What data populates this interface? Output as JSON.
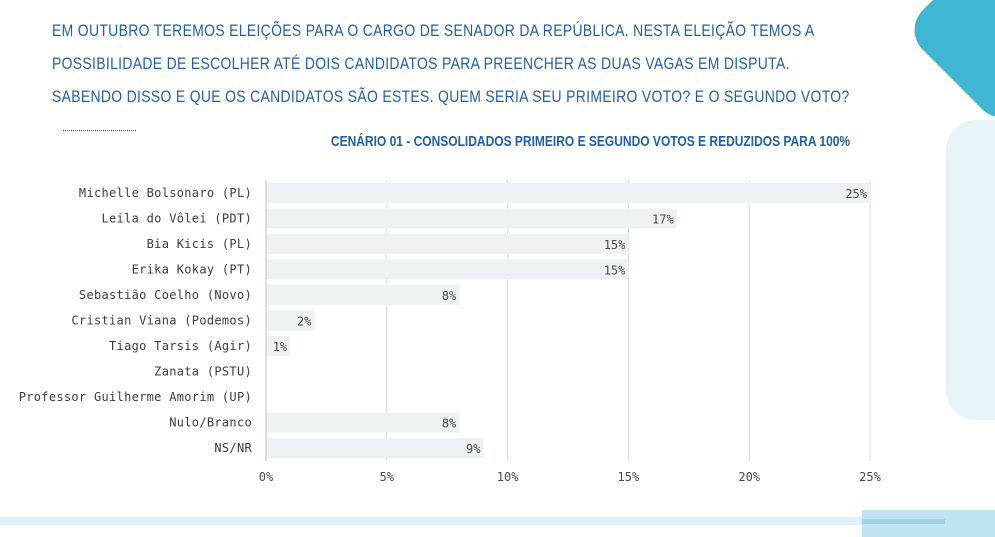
{
  "question": {
    "lines": [
      "EM OUTUBRO TEREMOS ELEIÇÕES PARA O CARGO DE SENADOR DA REPÚBLICA. NESTA ELEIÇÃO TEMOS A",
      "POSSIBILIDADE DE ESCOLHER ATÉ DOIS CANDIDATOS PARA PREENCHER AS DUAS VAGAS EM DISPUTA.",
      "SABENDO DISSO E QUE OS CANDIDATOS SÃO ESTES. QUEM SERIA SEU PRIMEIRO VOTO? E O SEGUNDO VOTO?"
    ]
  },
  "colors": {
    "title": "#1f5fa8",
    "bar": "#eef1f1",
    "grid": "#d9d9d9",
    "accent": "#3db7d3"
  },
  "chart_data": {
    "type": "bar",
    "orientation": "horizontal",
    "title": "CENÁRIO 01 - CONSOLIDADOS PRIMEIRO E SEGUNDO VOTOS E REDUZIDOS PARA 100%",
    "categories": [
      "Michelle Bolsonaro (PL)",
      "Leila do Vôlei (PDT)",
      "Bia Kicis (PL)",
      "Erika Kokay (PT)",
      "Sebastião Coelho (Novo)",
      "Cristian Viana (Podemos)",
      "Tiago Tarsis (Agir)",
      "Zanata (PSTU)",
      "Professor Guilherme Amorim (UP)",
      "Nulo/Branco",
      "NS/NR"
    ],
    "values": [
      25,
      17,
      15,
      15,
      8,
      2,
      1,
      0,
      0,
      8,
      9
    ],
    "value_labels": [
      "25%",
      "17%",
      "15%",
      "15%",
      "8%",
      "2%",
      "1%",
      "",
      "",
      "8%",
      "9%"
    ],
    "xlim": [
      0,
      25
    ],
    "x_ticks": [
      0,
      5,
      10,
      15,
      20,
      25
    ],
    "x_tick_labels": [
      "0%",
      "5%",
      "10%",
      "15%",
      "20%",
      "25%"
    ],
    "grid": true,
    "legend": "none"
  }
}
